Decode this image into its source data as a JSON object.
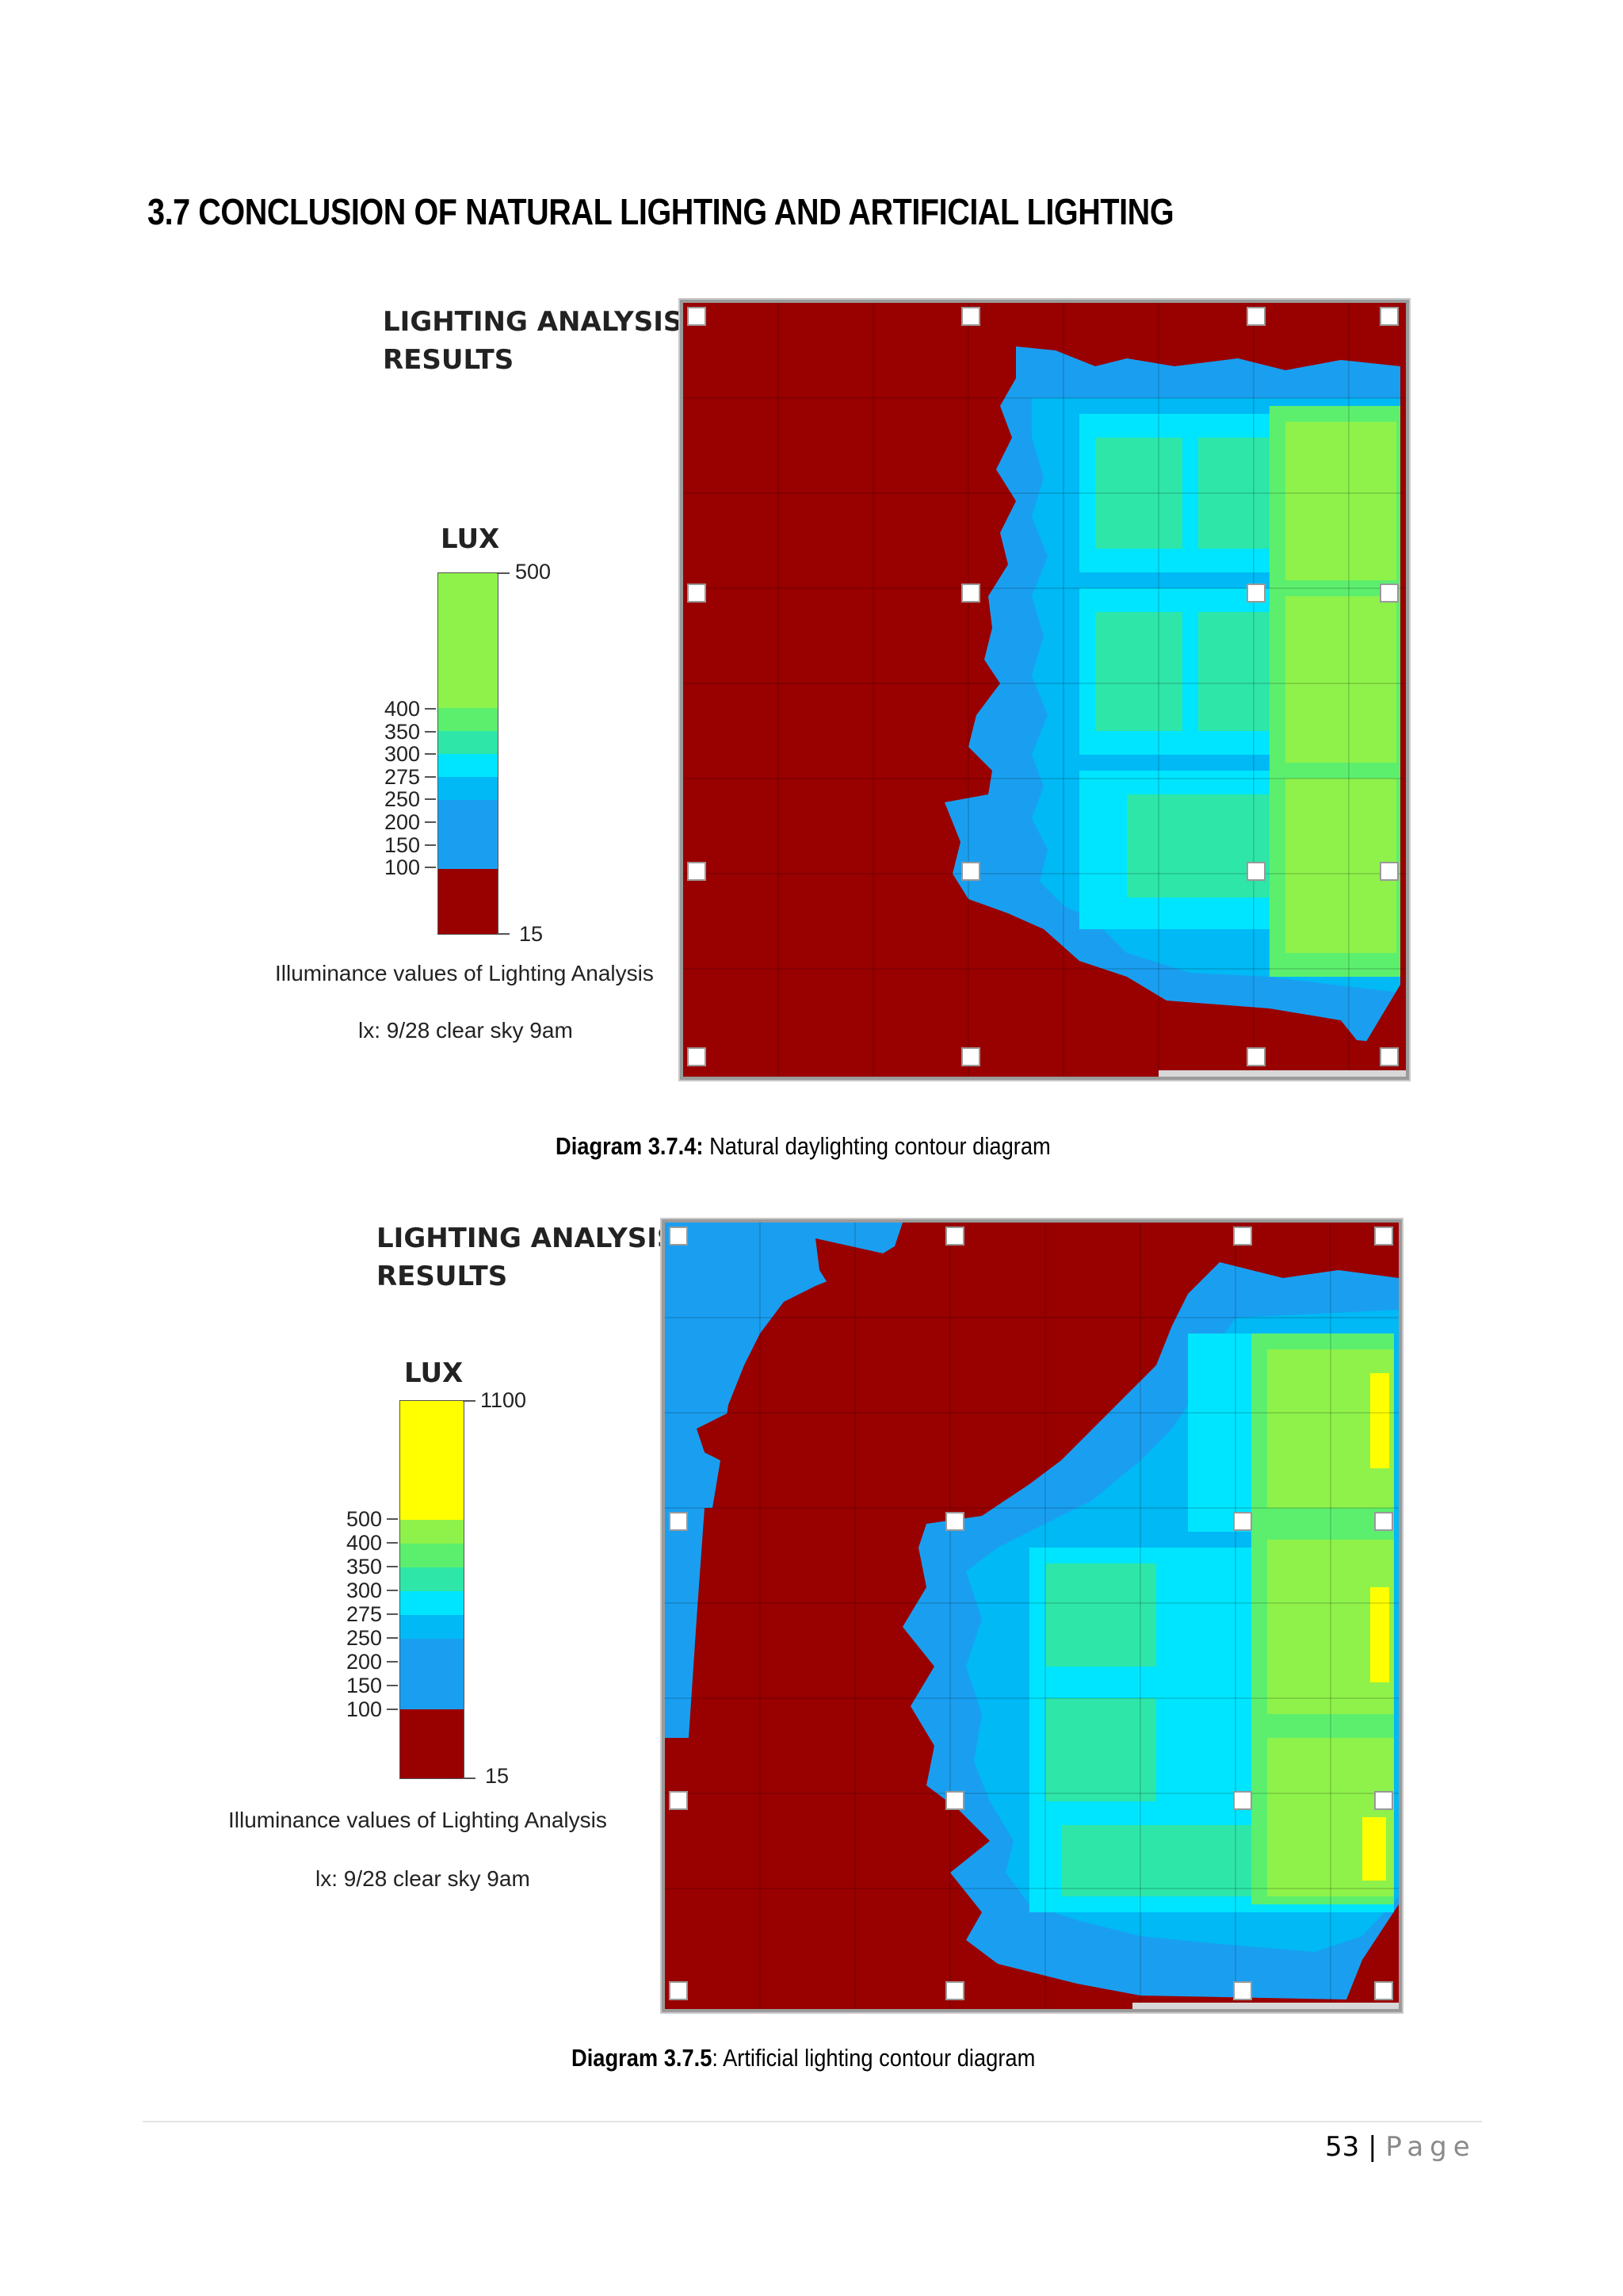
{
  "heading": "3.7 CONCLUSION OF NATURAL LIGHTING AND ARTIFICIAL LIGHTING",
  "colors": {
    "dark_red": "#990000",
    "blue": "#1a9ff0",
    "light_blue": "#00b9f5",
    "cyan": "#00e5ff",
    "aqua_green": "#2ee6a8",
    "mint": "#5cef6e",
    "light_green": "#8ef24a",
    "yellow": "#ffff00"
  },
  "diagrams": [
    {
      "panel_title_line1": "LIGHTING ANALYSIS",
      "panel_title_line2": "RESULTS",
      "unit_label": "LUX",
      "scale_top": "500",
      "scale_bottom": "15",
      "scale_ticks": [
        "400",
        "350",
        "300",
        "275",
        "250",
        "200",
        "150",
        "100"
      ],
      "legend_caption": "Illuminance values of Lighting Analysis",
      "legend_subcaption": "lx: 9/28 clear sky 9am",
      "caption_bold": "Diagram 3.7.4:",
      "caption_text": " Natural daylighting contour diagram"
    },
    {
      "panel_title_line1": "LIGHTING ANALYSIS",
      "panel_title_line2": "RESULTS",
      "unit_label": "LUX",
      "scale_top": "1100",
      "scale_bottom": "15",
      "scale_ticks": [
        "500",
        "400",
        "350",
        "300",
        "275",
        "250",
        "200",
        "150",
        "100"
      ],
      "legend_caption": "Illuminance values of Lighting Analysis",
      "legend_subcaption": "lx: 9/28 clear sky 9am",
      "caption_bold": "Diagram 3.7.5",
      "caption_text": ": Artificial lighting contour diagram"
    }
  ],
  "footer": {
    "page_number": "53",
    "separator": "|",
    "page_word": "Page"
  }
}
